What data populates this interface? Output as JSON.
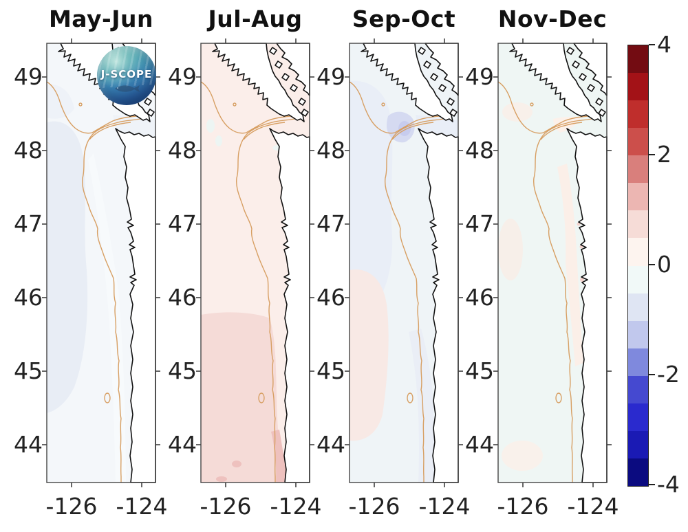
{
  "figure": {
    "background": "#ffffff"
  },
  "panels": [
    {
      "title": "May-Jun",
      "yticks": [
        "49",
        "48",
        "47",
        "46",
        "45",
        "44"
      ],
      "xticks": [
        "-126",
        "-124"
      ]
    },
    {
      "title": "Jul-Aug",
      "yticks": [
        "49",
        "48",
        "47",
        "46",
        "45",
        "44"
      ],
      "xticks": [
        "-126",
        "-124"
      ]
    },
    {
      "title": "Sep-Oct",
      "yticks": [
        "49",
        "48",
        "47",
        "46",
        "45",
        "44"
      ],
      "xticks": [
        "-126",
        "-124"
      ]
    },
    {
      "title": "Nov-Dec",
      "yticks": [
        "49",
        "48",
        "47",
        "46",
        "45",
        "44"
      ],
      "xticks": [
        "-126",
        "-124"
      ]
    }
  ],
  "colorbar": {
    "tick_labels": [
      "4",
      "2",
      "0",
      "-2",
      "-4"
    ],
    "segment_colors": [
      "#730c12",
      "#a31217",
      "#bf2e2c",
      "#cc4f4b",
      "#d97f7c",
      "#ecb6b2",
      "#f6dcd7",
      "#fdf4ef",
      "#f1f9f8",
      "#dfe5f3",
      "#c1c8ed",
      "#7f89dd",
      "#4549d0",
      "#2a2ace",
      "#1a1ab4",
      "#0b0b80"
    ],
    "border_color": "#222222"
  },
  "logo": {
    "text": "J-SCOPE"
  },
  "map_style": {
    "coastline": "#111111",
    "bathymetry_contour": "#d79f63",
    "land": "#ffffff",
    "frame": "#444444"
  },
  "chart_data": {
    "type": "heatmap",
    "panel_titles": [
      "May-Jun",
      "Jul-Aug",
      "Sep-Oct",
      "Nov-Dec"
    ],
    "x_ticks": [
      -126,
      -124
    ],
    "y_ticks": [
      49,
      48,
      47,
      46,
      45,
      44
    ],
    "x_range": [
      -126.7,
      -123.6
    ],
    "y_range": [
      43.5,
      49.45
    ],
    "colorbar": {
      "range": [
        -4,
        4
      ],
      "tick_values": [
        4,
        2,
        0,
        -2,
        -4
      ],
      "n_segments": 16,
      "segment_colors_top_to_bottom": [
        "#730c12",
        "#a31217",
        "#bf2e2c",
        "#cc4f4b",
        "#d97f7c",
        "#ecb6b2",
        "#f6dcd7",
        "#fdf4ef",
        "#f1f9f8",
        "#dfe5f3",
        "#c1c8ed",
        "#7f89dd",
        "#4549d0",
        "#2a2ace",
        "#1a1ab4",
        "#0b0b80"
      ]
    },
    "region": "Pacific Northwest coast: Vancouver Island, Strait of Juan de Fuca, Washington and Oregon shelf",
    "panel_anomaly_estimates": [
      {
        "panel": "May-Jun",
        "offshore": -0.4,
        "nearshore": -0.1
      },
      {
        "panel": "Jul-Aug",
        "offshore": 0.3,
        "nearshore_south": 0.7
      },
      {
        "panel": "Sep-Oct",
        "north_offshore": -0.5,
        "strait_mouth": -1.2,
        "south_offshore": 0.3
      },
      {
        "panel": "Nov-Dec",
        "offshore": 0.0,
        "shelf_band": 0.2
      }
    ],
    "overlays": [
      "black coastline",
      "tan bathymetry contours",
      "J-SCOPE logo in first panel"
    ]
  }
}
